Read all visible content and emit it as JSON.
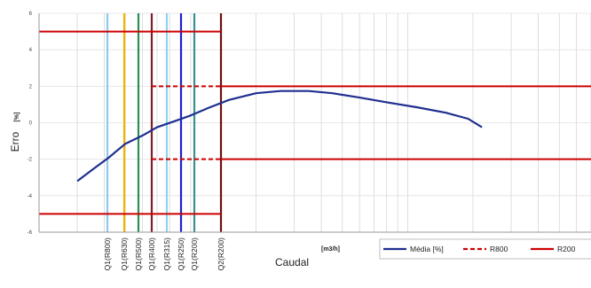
{
  "chart_data": {
    "type": "line",
    "ylabel": "Erro",
    "ylabel_unit": "[%]",
    "xlabel": "Caudal",
    "xlabel_unit": "[m3/h]",
    "ylim": [
      -6,
      6
    ],
    "yticks": [
      "6",
      "4",
      "2",
      "0",
      "-2",
      "-4",
      "-6"
    ],
    "x_scale": "log",
    "grid": true,
    "legend_position": "bottom-right",
    "series": [
      {
        "name": "Média [%]",
        "color": "#1f2f8f",
        "points": [
          [
            0.3,
            -3.2
          ],
          [
            0.35,
            -2.6
          ],
          [
            0.42,
            -1.9
          ],
          [
            0.5,
            -1.15
          ],
          [
            0.6,
            -0.7
          ],
          [
            0.7,
            -0.25
          ],
          [
            0.85,
            0.1
          ],
          [
            1.0,
            0.4
          ],
          [
            1.2,
            0.8
          ],
          [
            1.5,
            1.25
          ],
          [
            2.0,
            1.62
          ],
          [
            2.6,
            1.74
          ],
          [
            3.5,
            1.74
          ],
          [
            4.5,
            1.62
          ],
          [
            6.0,
            1.38
          ],
          [
            8.0,
            1.12
          ],
          [
            11.0,
            0.85
          ],
          [
            15.0,
            0.55
          ],
          [
            19.0,
            0.22
          ],
          [
            22.0,
            -0.25
          ]
        ]
      }
    ],
    "limit_lines": [
      {
        "name": "R800",
        "style": "dashed",
        "color": "#cc0000",
        "upper": 2,
        "lower": -2,
        "from_flow": "Q1(R400)",
        "to_flow": "Q2(R200)"
      },
      {
        "name": "R200",
        "style": "solid",
        "color": "#cc0000",
        "upper": 5,
        "lower": -5,
        "from_flow": "start",
        "to_flow": "Q2(R200)"
      },
      {
        "name": "R200",
        "style": "solid",
        "color": "#cc0000",
        "upper": 2,
        "lower": -2,
        "from_flow": "Q2(R200)",
        "to_flow": "end"
      }
    ],
    "flow_markers": [
      {
        "label": "Q1(R800)",
        "color": "#8ec7f0"
      },
      {
        "label": "Q1(R630)",
        "color": "#f2b500"
      },
      {
        "label": "Q1(R500)",
        "color": "#2e8b57"
      },
      {
        "label": "Q1(R400)",
        "color": "#7a1f2b"
      },
      {
        "label": "Q1(R315)",
        "color": "#8fd3ee"
      },
      {
        "label": "Q1(R250)",
        "color": "#1f1fcc"
      },
      {
        "label": "Q1(R200)",
        "color": "#3f8f8f"
      },
      {
        "label": "Q2(R200)",
        "color": "#6b1010"
      }
    ],
    "legend": [
      {
        "label": "Média [%]",
        "style": "solid",
        "color": "#1f2f8f"
      },
      {
        "label": "R800",
        "style": "dashed",
        "color": "#cc0000"
      },
      {
        "label": "R200",
        "style": "solid",
        "color": "#cc0000"
      }
    ]
  }
}
